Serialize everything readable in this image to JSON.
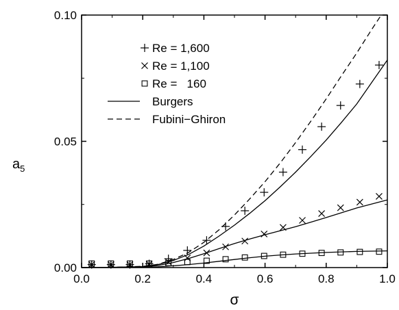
{
  "chart_data": {
    "type": "scatter",
    "xlabel": "σ",
    "ylabel": "a",
    "ylabel_sub": "5",
    "xlim": [
      0.0,
      1.0
    ],
    "ylim": [
      0.0,
      0.1
    ],
    "x_ticks": [
      0.0,
      0.2,
      0.4,
      0.6,
      0.8,
      1.0
    ],
    "x_tick_labels": [
      "0.0",
      "0.2",
      "0.4",
      "0.6",
      "0.8",
      "1.0"
    ],
    "y_ticks": [
      0.0,
      0.05,
      0.1
    ],
    "y_tick_labels": [
      "0.00",
      "0.05",
      "0.10"
    ],
    "grid": false,
    "legend_position": "top-left",
    "series": [
      {
        "name": "Re = 1,600",
        "marker": "plus",
        "x": [
          0.033,
          0.096,
          0.158,
          0.221,
          0.284,
          0.346,
          0.409,
          0.471,
          0.534,
          0.597,
          0.659,
          0.722,
          0.785,
          0.847,
          0.91,
          0.973
        ],
        "y": [
          0.0012,
          0.0012,
          0.0012,
          0.0015,
          0.0035,
          0.0068,
          0.0108,
          0.0163,
          0.0225,
          0.0298,
          0.0378,
          0.0467,
          0.0558,
          0.0642,
          0.0727,
          0.0802
        ]
      },
      {
        "name": "Re = 1,100",
        "marker": "cross",
        "x": [
          0.033,
          0.096,
          0.158,
          0.221,
          0.284,
          0.346,
          0.409,
          0.471,
          0.534,
          0.597,
          0.659,
          0.722,
          0.785,
          0.847,
          0.91,
          0.973
        ],
        "y": [
          0.0012,
          0.0012,
          0.0012,
          0.0014,
          0.0022,
          0.0038,
          0.0058,
          0.0082,
          0.0105,
          0.0133,
          0.0159,
          0.0187,
          0.0214,
          0.0237,
          0.0259,
          0.0282
        ]
      },
      {
        "name": "Re =   160",
        "marker": "square",
        "x": [
          0.033,
          0.096,
          0.158,
          0.221,
          0.284,
          0.346,
          0.409,
          0.471,
          0.534,
          0.597,
          0.659,
          0.722,
          0.785,
          0.847,
          0.91,
          0.973
        ],
        "y": [
          0.0016,
          0.0016,
          0.0016,
          0.0016,
          0.0018,
          0.0022,
          0.0027,
          0.0033,
          0.004,
          0.0046,
          0.0051,
          0.0055,
          0.0058,
          0.006,
          0.0062,
          0.0063
        ]
      }
    ],
    "curves": [
      {
        "name": "Burgers",
        "style": "solid",
        "x": [
          0.0,
          0.1,
          0.2,
          0.25,
          0.3,
          0.35,
          0.4,
          0.45,
          0.5,
          0.55,
          0.6,
          0.65,
          0.7,
          0.75,
          0.8,
          0.85,
          0.9,
          0.95,
          1.0
        ],
        "y": [
          0.0,
          0.0001,
          0.0004,
          0.0012,
          0.0028,
          0.0052,
          0.0085,
          0.0125,
          0.0168,
          0.0215,
          0.0265,
          0.032,
          0.0378,
          0.044,
          0.0505,
          0.0575,
          0.0648,
          0.0735,
          0.0822
        ]
      },
      {
        "name": "",
        "style": "solid",
        "x": [
          0.0,
          0.1,
          0.2,
          0.25,
          0.3,
          0.35,
          0.4,
          0.45,
          0.5,
          0.55,
          0.6,
          0.65,
          0.7,
          0.75,
          0.8,
          0.85,
          0.9,
          0.95,
          1.0
        ],
        "y": [
          0.0,
          0.0001,
          0.0003,
          0.0008,
          0.002,
          0.0036,
          0.0055,
          0.0075,
          0.0095,
          0.0113,
          0.013,
          0.0146,
          0.0162,
          0.018,
          0.0198,
          0.0217,
          0.0236,
          0.0252,
          0.0268
        ]
      },
      {
        "name": "",
        "style": "solid",
        "x": [
          0.0,
          0.1,
          0.2,
          0.25,
          0.3,
          0.35,
          0.4,
          0.45,
          0.5,
          0.55,
          0.6,
          0.65,
          0.7,
          0.75,
          0.8,
          0.85,
          0.9,
          0.95,
          1.0
        ],
        "y": [
          0.0,
          0.0,
          0.0001,
          0.0003,
          0.0007,
          0.0012,
          0.0018,
          0.0025,
          0.0032,
          0.0039,
          0.0045,
          0.005,
          0.0054,
          0.0057,
          0.006,
          0.0062,
          0.0064,
          0.0065,
          0.0066
        ]
      },
      {
        "name": "Fubini−Ghiron",
        "style": "dashed",
        "x": [
          0.0,
          0.1,
          0.2,
          0.25,
          0.3,
          0.35,
          0.4,
          0.45,
          0.5,
          0.55,
          0.6,
          0.65,
          0.7,
          0.75,
          0.8,
          0.85,
          0.9,
          0.95,
          0.98
        ],
        "y": [
          0.0,
          0.0001,
          0.0005,
          0.0013,
          0.0032,
          0.006,
          0.01,
          0.015,
          0.0208,
          0.0272,
          0.034,
          0.0415,
          0.0495,
          0.058,
          0.0668,
          0.076,
          0.085,
          0.0945,
          0.1
        ]
      }
    ],
    "legend": [
      {
        "label": "Re = 1,600",
        "symbol": "plus"
      },
      {
        "label": "Re = 1,100",
        "symbol": "cross"
      },
      {
        "label": "Re =   160",
        "symbol": "square"
      },
      {
        "label": "Burgers",
        "symbol": "solid-line"
      },
      {
        "label": "Fubini−Ghiron",
        "symbol": "dashed-line"
      }
    ]
  }
}
